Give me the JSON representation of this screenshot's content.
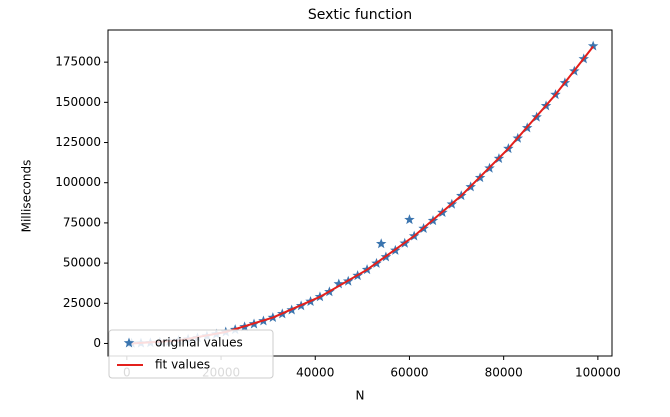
{
  "chart_data": {
    "type": "scatter",
    "title": "Sextic function",
    "x_label": "N",
    "y_label": "Milliseconds",
    "xlim": [
      -4000,
      103000
    ],
    "ylim": [
      -7800,
      195000
    ],
    "xticks": [
      0,
      20000,
      40000,
      60000,
      80000,
      100000
    ],
    "yticks": [
      0,
      25000,
      50000,
      75000,
      100000,
      125000,
      150000,
      175000
    ],
    "legend": "lower left",
    "series": [
      {
        "name": "original values",
        "color": "#3b75af",
        "marker": "star",
        "x": [
          1000,
          3000,
          5000,
          7000,
          9000,
          11000,
          13000,
          15000,
          17000,
          19000,
          21000,
          23000,
          25000,
          27000,
          29000,
          31000,
          33000,
          35000,
          37000,
          39000,
          41000,
          43000,
          45000,
          47000,
          49000,
          51000,
          53000,
          54000,
          55000,
          57000,
          59000,
          60000,
          61000,
          63000,
          65000,
          67000,
          69000,
          71000,
          73000,
          75000,
          77000,
          79000,
          81000,
          83000,
          85000,
          87000,
          89000,
          91000,
          93000,
          95000,
          97000,
          99000
        ],
        "values": [
          100,
          200,
          400,
          700,
          1200,
          1800,
          2600,
          3500,
          4600,
          5800,
          7100,
          8600,
          10300,
          12100,
          14000,
          16100,
          18400,
          20800,
          23400,
          26100,
          29000,
          32100,
          37000,
          38700,
          42200,
          45900,
          49800,
          62000,
          53800,
          57900,
          62300,
          77000,
          66800,
          71500,
          76400,
          81400,
          86600,
          91900,
          97400,
          103100,
          109000,
          115000,
          121200,
          127600,
          134100,
          140800,
          147800,
          154800,
          162100,
          169400,
          177000,
          185000
        ]
      },
      {
        "name": "fit values",
        "color": "#e3201c",
        "marker": "line",
        "x": [
          1000,
          11000,
          21000,
          31000,
          41000,
          51000,
          61000,
          71000,
          81000,
          91000,
          99000
        ],
        "values": [
          12,
          1831,
          7119,
          16131,
          29013,
          45894,
          66847,
          91942,
          121228,
          154777,
          184706
        ]
      }
    ]
  }
}
